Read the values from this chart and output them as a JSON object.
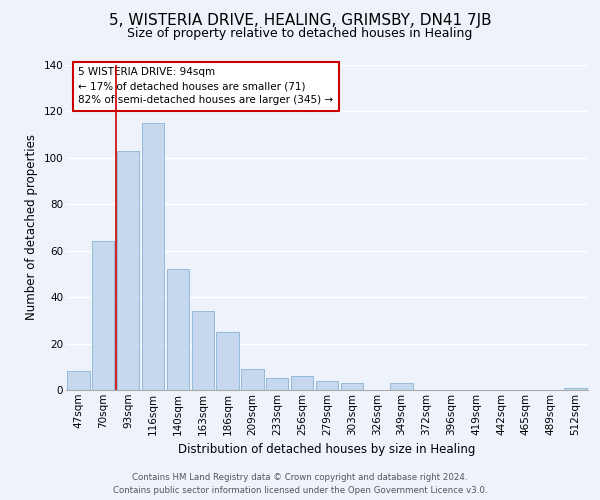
{
  "title": "5, WISTERIA DRIVE, HEALING, GRIMSBY, DN41 7JB",
  "subtitle": "Size of property relative to detached houses in Healing",
  "xlabel": "Distribution of detached houses by size in Healing",
  "ylabel": "Number of detached properties",
  "bar_color": "#c5d8ee",
  "bar_edge_color": "#8ab4d4",
  "categories": [
    "47sqm",
    "70sqm",
    "93sqm",
    "116sqm",
    "140sqm",
    "163sqm",
    "186sqm",
    "209sqm",
    "233sqm",
    "256sqm",
    "279sqm",
    "303sqm",
    "326sqm",
    "349sqm",
    "372sqm",
    "396sqm",
    "419sqm",
    "442sqm",
    "465sqm",
    "489sqm",
    "512sqm"
  ],
  "values": [
    8,
    64,
    103,
    115,
    52,
    34,
    25,
    9,
    5,
    6,
    4,
    3,
    0,
    3,
    0,
    0,
    0,
    0,
    0,
    0,
    1
  ],
  "ylim": [
    0,
    140
  ],
  "yticks": [
    0,
    20,
    40,
    60,
    80,
    100,
    120,
    140
  ],
  "red_line_x": 2.5,
  "annotation_text": "5 WISTERIA DRIVE: 94sqm\n← 17% of detached houses are smaller (71)\n82% of semi-detached houses are larger (345) →",
  "annotation_box_color": "#ffffff",
  "annotation_box_edgecolor": "#cc0000",
  "footer_line1": "Contains HM Land Registry data © Crown copyright and database right 2024.",
  "footer_line2": "Contains public sector information licensed under the Open Government Licence v3.0.",
  "background_color": "#eef2fb",
  "grid_color": "#ffffff",
  "title_fontsize": 11,
  "subtitle_fontsize": 9,
  "label_fontsize": 8.5,
  "tick_fontsize": 7.5,
  "annotation_fontsize": 7.5
}
